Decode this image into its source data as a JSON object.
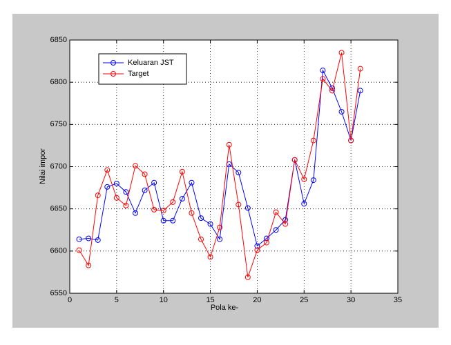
{
  "chart_data": {
    "type": "line",
    "x_label": "Pola ke-",
    "y_label": "Nilai impor",
    "x": [
      1,
      2,
      3,
      4,
      5,
      6,
      7,
      8,
      9,
      10,
      11,
      12,
      13,
      14,
      15,
      16,
      17,
      18,
      19,
      20,
      21,
      22,
      23,
      24,
      25,
      26,
      27,
      28,
      29,
      30,
      31
    ],
    "series": [
      {
        "name": "Keluaran JST",
        "color": "#0000ff",
        "values": [
          6614,
          6615,
          6613,
          6676,
          6680,
          6670,
          6645,
          6672,
          6681,
          6636,
          6636,
          6662,
          6681,
          6639,
          6632,
          6614,
          6703,
          6693,
          6651,
          6606,
          6615,
          6625,
          6637,
          6708,
          6656,
          6684,
          6814,
          6793,
          6765,
          6731,
          6790
        ]
      },
      {
        "name": "Target",
        "color": "#ff0000",
        "values": [
          6601,
          6583,
          6666,
          6696,
          6663,
          6654,
          6701,
          6691,
          6649,
          6648,
          6658,
          6694,
          6645,
          6614,
          6593,
          6628,
          6726,
          6655,
          6569,
          6601,
          6610,
          6646,
          6632,
          6708,
          6685,
          6731,
          6804,
          6790,
          6835,
          6731,
          6816
        ]
      }
    ],
    "xlim": [
      0,
      35
    ],
    "xticks": [
      0,
      5,
      10,
      15,
      20,
      25,
      30,
      35
    ],
    "ylim": [
      6550,
      6850
    ],
    "yticks": [
      6550,
      6600,
      6650,
      6700,
      6750,
      6800,
      6850
    ],
    "grid": true,
    "legend": "upper left"
  }
}
